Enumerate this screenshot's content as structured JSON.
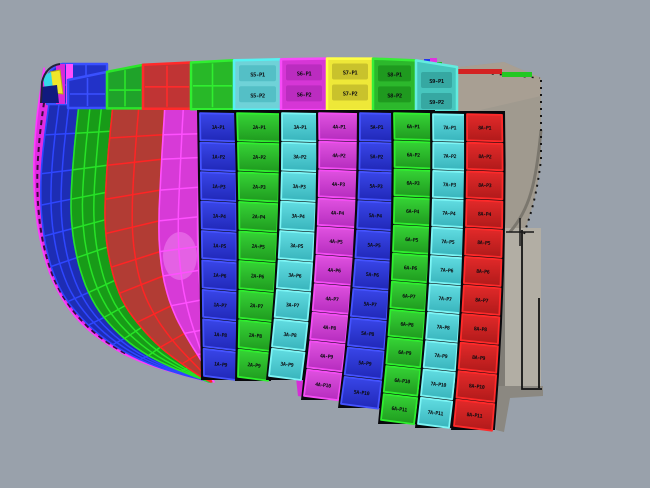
{
  "viewport": {
    "background": "#99a1ab",
    "backdrop_seam": "#08080c",
    "label_color": "#0c0c10"
  },
  "cursor": {
    "color": "#1a1a1a"
  },
  "structure": {
    "face": "#a09a8f",
    "face_top": "#a89f93",
    "edge_dark": "#8a877e",
    "slab": "#b2aea4",
    "shadow": "#807d76",
    "under_shadow": "#8b8881",
    "outline": "#141414",
    "strips": [
      {
        "color": "#22c822"
      },
      {
        "color": "#d42222"
      },
      {
        "color": "#22c822"
      }
    ],
    "blobs": [
      {
        "color": "#2233ee"
      },
      {
        "color": "#e033e0"
      },
      {
        "color": "#22bb22"
      }
    ]
  },
  "hull": {
    "highlight": "#ee82ee",
    "cluster": {
      "corner_fill": "#2232c8",
      "corner_stroke": "#3a50ff",
      "magenta_a": "#d928d9",
      "magenta_b": "#ff4dff",
      "yellow": "#f0e62a",
      "cyan": "#35d8e8",
      "navy": "#111a7e"
    },
    "bands": [
      {
        "name": "sheer-edge-strip",
        "fill": "#e22ce2",
        "stroke": "#ff3cff",
        "dash": "#3c0a3c",
        "rows": 0,
        "mids": 0
      },
      {
        "name": "hull-band-blue",
        "fill": "#1d2db4",
        "stroke": "#2e46ff",
        "rows": 11,
        "mids": 2
      },
      {
        "name": "hull-band-green",
        "fill": "#189b18",
        "stroke": "#27e327",
        "rows": 11,
        "mids": 2
      },
      {
        "name": "hull-band-red",
        "fill": "#b23c34",
        "stroke": "#ff2424",
        "rows": 10,
        "mids": 1
      },
      {
        "name": "hull-band-magenta",
        "fill": "#d73ad7",
        "stroke": "#ff50ff",
        "rows": 10,
        "mids": 1
      }
    ]
  },
  "top_band": {
    "plates": [
      {
        "kind": "grid",
        "fill": "#2232c8",
        "stroke": "#3a50ff"
      },
      {
        "kind": "grid",
        "fill": "#1fa32a",
        "stroke": "#2ae62a"
      },
      {
        "kind": "grid",
        "fill": "#c03434",
        "stroke": "#ff2a2a"
      },
      {
        "kind": "grid",
        "fill": "#28b828",
        "stroke": "#30ee30"
      },
      {
        "kind": "cells",
        "fill": "#6fd2d8",
        "stroke": "#55f2f2",
        "cell": "#54bfc6",
        "labels": [
          "S5-P1",
          "S5-P2"
        ]
      },
      {
        "kind": "cells",
        "fill": "#d636d6",
        "stroke": "#f84af8",
        "cell": "#bb2cc0",
        "labels": [
          "S6-P1",
          "S6-P2"
        ]
      },
      {
        "kind": "cells",
        "fill": "#eee838",
        "stroke": "#ffff45",
        "cell": "#c9c22c",
        "labels": [
          "S7-P1",
          "S7-P2"
        ]
      },
      {
        "kind": "cells",
        "fill": "#2cb82c",
        "stroke": "#38ee38",
        "cell": "#1f9a1f",
        "labels": [
          "S8-P1",
          "S8-P2"
        ]
      },
      {
        "kind": "cells",
        "fill": "#47c6be",
        "stroke": "#63ecdf",
        "cell": "#36a8a2",
        "labels": [
          "S9-P1",
          "S9-P2"
        ]
      }
    ]
  },
  "columns": [
    {
      "name": "plate-column-blue-1",
      "grad_top": "#3946e8",
      "grad_bot": "#2028b8",
      "stroke": "#4553ff",
      "labels": [
        "1A-P1",
        "1A-P2",
        "1A-P3",
        "1A-P4",
        "1A-P5",
        "1A-P6",
        "1A-P7",
        "1A-P8",
        "1A-P9"
      ]
    },
    {
      "name": "plate-column-green-1",
      "grad_top": "#36d436",
      "grad_bot": "#1f9a1f",
      "stroke": "#2ef02e",
      "labels": [
        "2A-P1",
        "2A-P2",
        "2A-P3",
        "2A-P4",
        "2A-P5",
        "2A-P6",
        "2A-P7",
        "2A-P8",
        "2A-P9"
      ]
    },
    {
      "name": "plate-column-cyan-1",
      "grad_top": "#62dde2",
      "grad_bot": "#38b4bc",
      "stroke": "#7df5f5",
      "labels": [
        "3A-P1",
        "3A-P2",
        "3A-P3",
        "3A-P4",
        "3A-P5",
        "3A-P6",
        "3A-P7",
        "3A-P8",
        "3A-P9"
      ]
    },
    {
      "name": "plate-column-magenta-1",
      "grad_top": "#e052e0",
      "grad_bot": "#b52cbe",
      "stroke": "#f44df4",
      "labels": [
        "4A-P1",
        "4A-P2",
        "4A-P3",
        "4A-P4",
        "4A-P5",
        "4A-P6",
        "4A-P7",
        "4A-P8",
        "4A-P9",
        "4A-P10"
      ]
    },
    {
      "name": "plate-column-blue-2",
      "grad_top": "#3946e8",
      "grad_bot": "#2028b8",
      "stroke": "#4553ff",
      "labels": [
        "5A-P1",
        "5A-P2",
        "5A-P3",
        "5A-P4",
        "5A-P5",
        "5A-P6",
        "5A-P7",
        "5A-P8",
        "5A-P9",
        "5A-P10"
      ]
    },
    {
      "name": "plate-column-green-2",
      "grad_top": "#36d436",
      "grad_bot": "#1f9a1f",
      "stroke": "#2ef02e",
      "labels": [
        "6A-P1",
        "6A-P2",
        "6A-P3",
        "6A-P4",
        "6A-P5",
        "6A-P6",
        "6A-P7",
        "6A-P8",
        "6A-P9",
        "6A-P10",
        "6A-P11"
      ]
    },
    {
      "name": "plate-column-cyan-2",
      "grad_top": "#62dde2",
      "grad_bot": "#38b4bc",
      "stroke": "#7df5f5",
      "labels": [
        "7A-P1",
        "7A-P2",
        "7A-P3",
        "7A-P4",
        "7A-P5",
        "7A-P6",
        "7A-P7",
        "7A-P8",
        "7A-P9",
        "7A-P10",
        "7A-P11"
      ]
    },
    {
      "name": "plate-column-red-1",
      "grad_top": "#e32a2a",
      "grad_bot": "#b01a1a",
      "stroke": "#ff2a2a",
      "labels": [
        "8A-P1",
        "8A-P2",
        "8A-P3",
        "8A-P4",
        "8A-P5",
        "8A-P6",
        "8A-P7",
        "8A-P8",
        "8A-P9",
        "8A-P10",
        "8A-P11"
      ]
    }
  ],
  "extras": {
    "yellow_wedge": {
      "fill": "#e8e030",
      "stroke": "#b8a818"
    },
    "magenta_step": {
      "fill": "#d52ed5"
    },
    "navy_wedge": {
      "fill": "#2028c0"
    }
  }
}
